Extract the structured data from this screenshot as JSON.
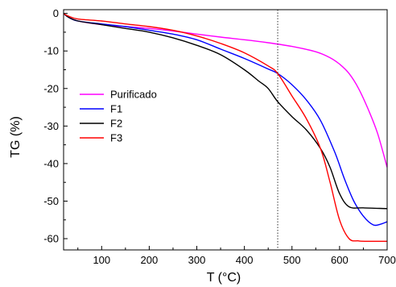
{
  "chart_data": {
    "type": "line",
    "xlabel": "T (°C)",
    "ylabel": "TG (%)",
    "xlim": [
      20,
      700
    ],
    "ylim": [
      -63,
      1
    ],
    "x_ticks": [
      100,
      200,
      300,
      400,
      500,
      600,
      700
    ],
    "y_ticks": [
      0,
      -10,
      -20,
      -30,
      -40,
      -50,
      -60
    ],
    "grid": false,
    "legend_position": "center-left",
    "reference_line": {
      "x": 470,
      "style": "dotted"
    },
    "series": [
      {
        "name": "Purificado",
        "color": "#ff00ff",
        "x": [
          20,
          30,
          50,
          100,
          150,
          200,
          250,
          300,
          350,
          400,
          450,
          500,
          550,
          580,
          600,
          620,
          640,
          660,
          680,
          700
        ],
        "y": [
          0,
          -1,
          -2,
          -3,
          -3.5,
          -4,
          -4.7,
          -5.5,
          -6.3,
          -7,
          -7.8,
          -8.8,
          -10.2,
          -11.8,
          -13.5,
          -16,
          -20,
          -25.5,
          -32,
          -41
        ]
      },
      {
        "name": "F1",
        "color": "#0000ff",
        "x": [
          20,
          30,
          50,
          100,
          150,
          200,
          250,
          300,
          350,
          400,
          450,
          470,
          500,
          530,
          560,
          590,
          610,
          630,
          650,
          670,
          685,
          700
        ],
        "y": [
          0,
          -1,
          -2,
          -2.8,
          -3.5,
          -4.5,
          -5.5,
          -7,
          -9.5,
          -12,
          -14.8,
          -16,
          -19,
          -23,
          -28.5,
          -37,
          -44,
          -50,
          -54,
          -56.3,
          -56.2,
          -55.5
        ]
      },
      {
        "name": "F2",
        "color": "#000000",
        "x": [
          20,
          30,
          50,
          100,
          150,
          200,
          250,
          300,
          350,
          400,
          430,
          450,
          470,
          500,
          530,
          560,
          580,
          600,
          620,
          650,
          700
        ],
        "y": [
          0,
          -1,
          -2,
          -3,
          -4,
          -5,
          -6.5,
          -8.5,
          -11,
          -15,
          -18,
          -20,
          -23.5,
          -27.5,
          -31,
          -36,
          -41,
          -48,
          -51.5,
          -51.8,
          -52
        ]
      },
      {
        "name": "F3",
        "color": "#ff0000",
        "x": [
          20,
          30,
          50,
          100,
          150,
          200,
          250,
          300,
          350,
          400,
          450,
          470,
          500,
          530,
          560,
          580,
          600,
          620,
          640,
          660,
          700
        ],
        "y": [
          0,
          -0.7,
          -1.5,
          -2,
          -2.8,
          -3.5,
          -4.5,
          -6,
          -8,
          -10.5,
          -14,
          -16,
          -22,
          -28,
          -36,
          -45,
          -55,
          -60,
          -60.6,
          -60.7,
          -60.7
        ]
      }
    ]
  }
}
